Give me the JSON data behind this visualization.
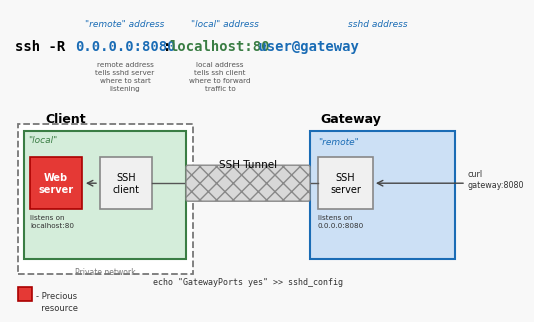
{
  "bg_color": "#f8f8f8",
  "title_top1": "\"remote\" address",
  "title_top2": "\"local\" address",
  "title_top3": "sshd address",
  "annotation1": "remote address\ntells sshd server\nwhere to start\nlistening",
  "annotation2": "local address\ntells ssh client\nwhere to forward\ntraffic to",
  "client_label": "Client",
  "gateway_label": "Gateway",
  "private_net_label": "Private network",
  "local_label": "\"local\"",
  "remote_label": "\"remote\"",
  "web_server_label": "Web\nserver",
  "ssh_client_label": "SSH\nclient",
  "ssh_server_label": "SSH\nserver",
  "tunnel_label": "SSH Tunnel",
  "listens_on_local": "listens on\nlocalhost:80",
  "listens_on_remote": "listens on\n0.0.0.0:8080",
  "curl_label": "curl\ngateway:8080",
  "echo_label": "echo \"GatewayPorts yes\" >> sshd_config",
  "legend_label": "- Precious\n  resource",
  "green_bg": "#d4edda",
  "blue_bg": "#cce0f5",
  "web_server_color": "#e53935",
  "ssh_box_color": "#f0f0f0",
  "remote_color": "#1a6cb5",
  "local_color": "#3a7d44",
  "cmd_color_remote": "#1a6cb5",
  "cmd_color_local": "#3a7d44",
  "cmd_color_user": "#1a6cb5",
  "top_label_color": "#1a6cb5",
  "arrow_color": "#444444",
  "font_mono": "monospace",
  "font_hand": "DejaVu Sans"
}
